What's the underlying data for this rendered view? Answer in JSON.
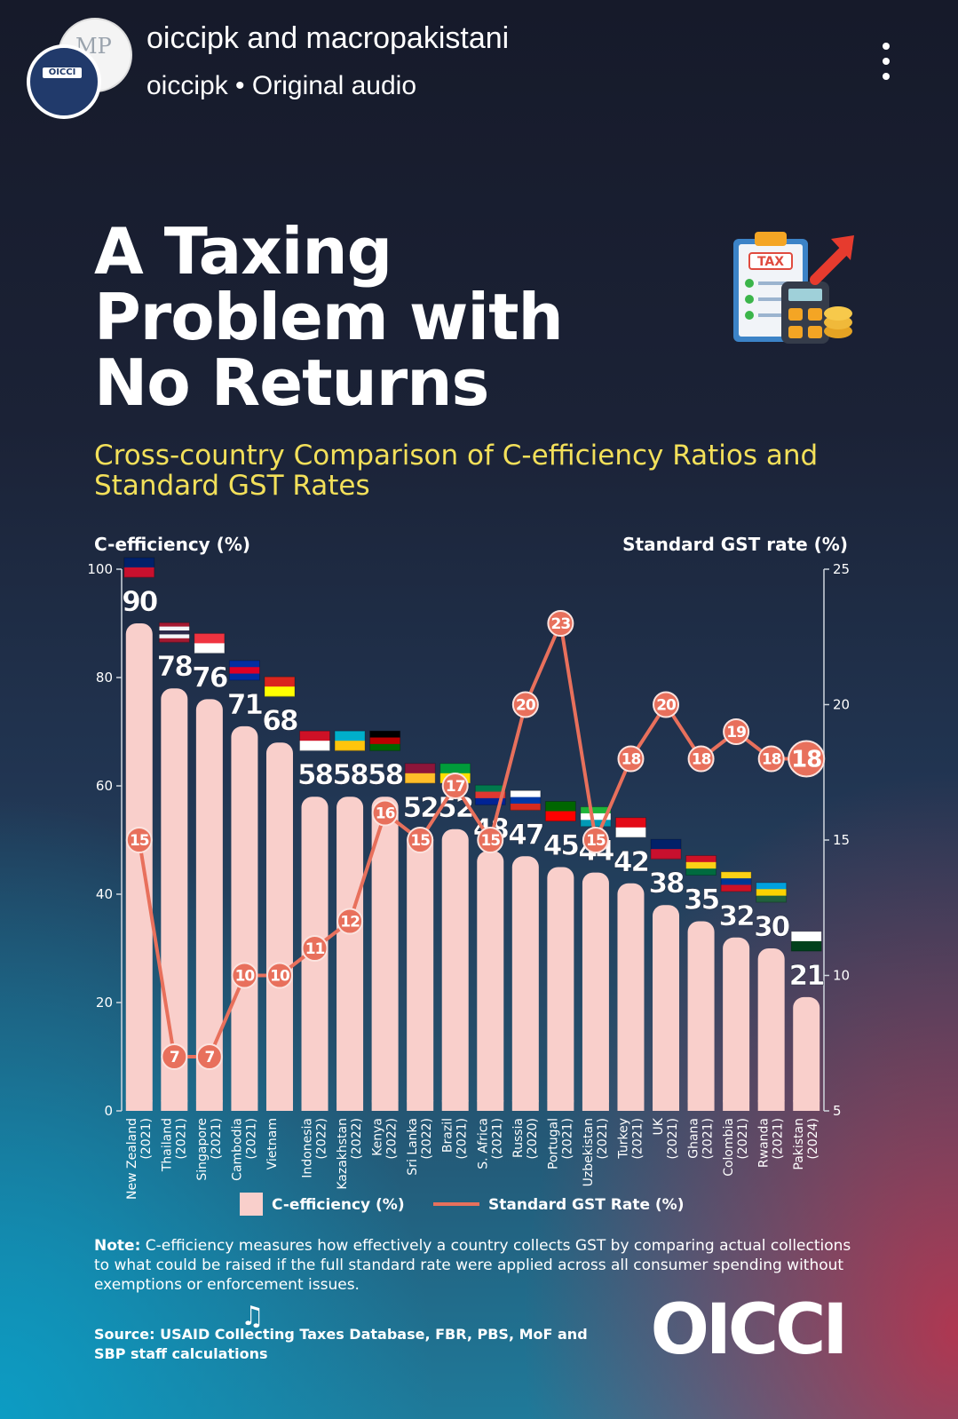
{
  "header": {
    "account": "oiccipk and macropakistani",
    "audio_user": "oiccipk",
    "audio_separator": "•",
    "audio_label": "Original audio",
    "more_icon": "more-vertical-icon"
  },
  "avatar": {
    "back_text": "MP",
    "front_text": "OICCI"
  },
  "title": "A Taxing Problem with No Returns",
  "subtitle": "Cross-country Comparison of C-efficiency Ratios and Standard GST Rates",
  "icon": {
    "name": "tax-clipboard-calculator-icon",
    "badge": "TAX"
  },
  "chart_data": {
    "type": "bar",
    "left_axis_title": "C-efficiency (%)",
    "right_axis_title": "Standard GST rate (%)",
    "ylim": [
      0,
      100
    ],
    "y2lim": [
      5,
      25
    ],
    "yticks": [
      0,
      20,
      40,
      60,
      80,
      100
    ],
    "y2ticks": [
      5,
      10,
      15,
      20,
      25
    ],
    "categories": [
      "New Zealand",
      "Thailand",
      "Singapore",
      "Cambodia",
      "Vietnam",
      "Indonesia",
      "Kazakhstan",
      "Kenya",
      "Sri Lanka",
      "Brazil",
      "S. Africa",
      "Russia",
      "Portugal",
      "Uzbekistan",
      "Turkey",
      "UK",
      "Ghana",
      "Colombia",
      "Rwanda",
      "Pakistan"
    ],
    "years": [
      "(2021)",
      "(2021)",
      "(2021)",
      "(2021)",
      "",
      "(2022)",
      "(2022)",
      "(2022)",
      "(2022)",
      "(2021)",
      "(2021)",
      "(2020)",
      "(2021)",
      "(2021)",
      "(2021)",
      "(2021)",
      "(2021)",
      "(2021)",
      "(2021)",
      "(2024)"
    ],
    "series": [
      {
        "name": "C-efficiency (%)",
        "type": "bar",
        "axis": "left",
        "color": "#f9cfcb",
        "values": [
          90,
          78,
          76,
          71,
          68,
          58,
          58,
          58,
          52,
          52,
          48,
          47,
          45,
          44,
          42,
          38,
          35,
          32,
          30,
          21
        ]
      },
      {
        "name": "Standard GST Rate (%)",
        "type": "line",
        "axis": "right",
        "color": "#e8705c",
        "values": [
          15,
          7,
          7,
          10,
          10,
          11,
          12,
          16,
          15,
          17,
          15,
          20,
          23,
          15,
          18,
          20,
          18,
          19,
          18,
          18
        ]
      }
    ],
    "flags": [
      {
        "name": "new-zealand-flag-icon",
        "colors": [
          "#012169",
          "#c8102e"
        ]
      },
      {
        "name": "thailand-flag-icon",
        "colors": [
          "#a51931",
          "#f4f5f8",
          "#2d2a4a",
          "#f4f5f8",
          "#a51931"
        ]
      },
      {
        "name": "singapore-flag-icon",
        "colors": [
          "#ef3340",
          "#ffffff"
        ]
      },
      {
        "name": "cambodia-flag-icon",
        "colors": [
          "#032ea1",
          "#e00025",
          "#032ea1"
        ]
      },
      {
        "name": "vietnam-flag-icon",
        "colors": [
          "#da251d",
          "#ffff00"
        ]
      },
      {
        "name": "indonesia-flag-icon",
        "colors": [
          "#ce1126",
          "#ffffff"
        ]
      },
      {
        "name": "kazakhstan-flag-icon",
        "colors": [
          "#00afca",
          "#fec50c"
        ]
      },
      {
        "name": "kenya-flag-icon",
        "colors": [
          "#000000",
          "#bb0000",
          "#006600"
        ]
      },
      {
        "name": "sri-lanka-flag-icon",
        "colors": [
          "#8d153a",
          "#ffbe29"
        ]
      },
      {
        "name": "brazil-flag-icon",
        "colors": [
          "#009c3b",
          "#ffdf00"
        ]
      },
      {
        "name": "south-africa-flag-icon",
        "colors": [
          "#007a4d",
          "#de3831",
          "#002395"
        ]
      },
      {
        "name": "russia-flag-icon",
        "colors": [
          "#ffffff",
          "#0039a6",
          "#d52b1e"
        ]
      },
      {
        "name": "portugal-flag-icon",
        "colors": [
          "#006600",
          "#ff0000"
        ]
      },
      {
        "name": "uzbekistan-flag-icon",
        "colors": [
          "#1eb53a",
          "#ffffff",
          "#0099b5"
        ]
      },
      {
        "name": "turkey-flag-icon",
        "colors": [
          "#e30a17",
          "#ffffff"
        ]
      },
      {
        "name": "uk-flag-icon",
        "colors": [
          "#012169",
          "#c8102e"
        ]
      },
      {
        "name": "ghana-flag-icon",
        "colors": [
          "#ce1126",
          "#fcd116",
          "#006b3f"
        ]
      },
      {
        "name": "colombia-flag-icon",
        "colors": [
          "#fcd116",
          "#003893",
          "#ce1126"
        ]
      },
      {
        "name": "rwanda-flag-icon",
        "colors": [
          "#00a1de",
          "#fad201",
          "#20603d"
        ]
      },
      {
        "name": "pakistan-flag-icon",
        "colors": [
          "#ffffff",
          "#01411c"
        ]
      }
    ],
    "legend": {
      "position": "bottom",
      "items": [
        "C-efficiency (%)",
        "Standard GST Rate (%)"
      ]
    }
  },
  "note": {
    "label": "Note:",
    "text": " C-efficiency measures how effectively a country collects GST by comparing actual collections to what could be raised if the full standard rate were applied across all consumer spending without exemptions or enforcement issues."
  },
  "source": "Source: USAID Collecting Taxes Database, FBR, PBS, MoF and SBP staff calculations",
  "logo_text": "OICCI",
  "colors": {
    "subtitle": "#f3e05a",
    "bar": "#f9cfcb",
    "line": "#e8705c",
    "text": "#ffffff"
  }
}
